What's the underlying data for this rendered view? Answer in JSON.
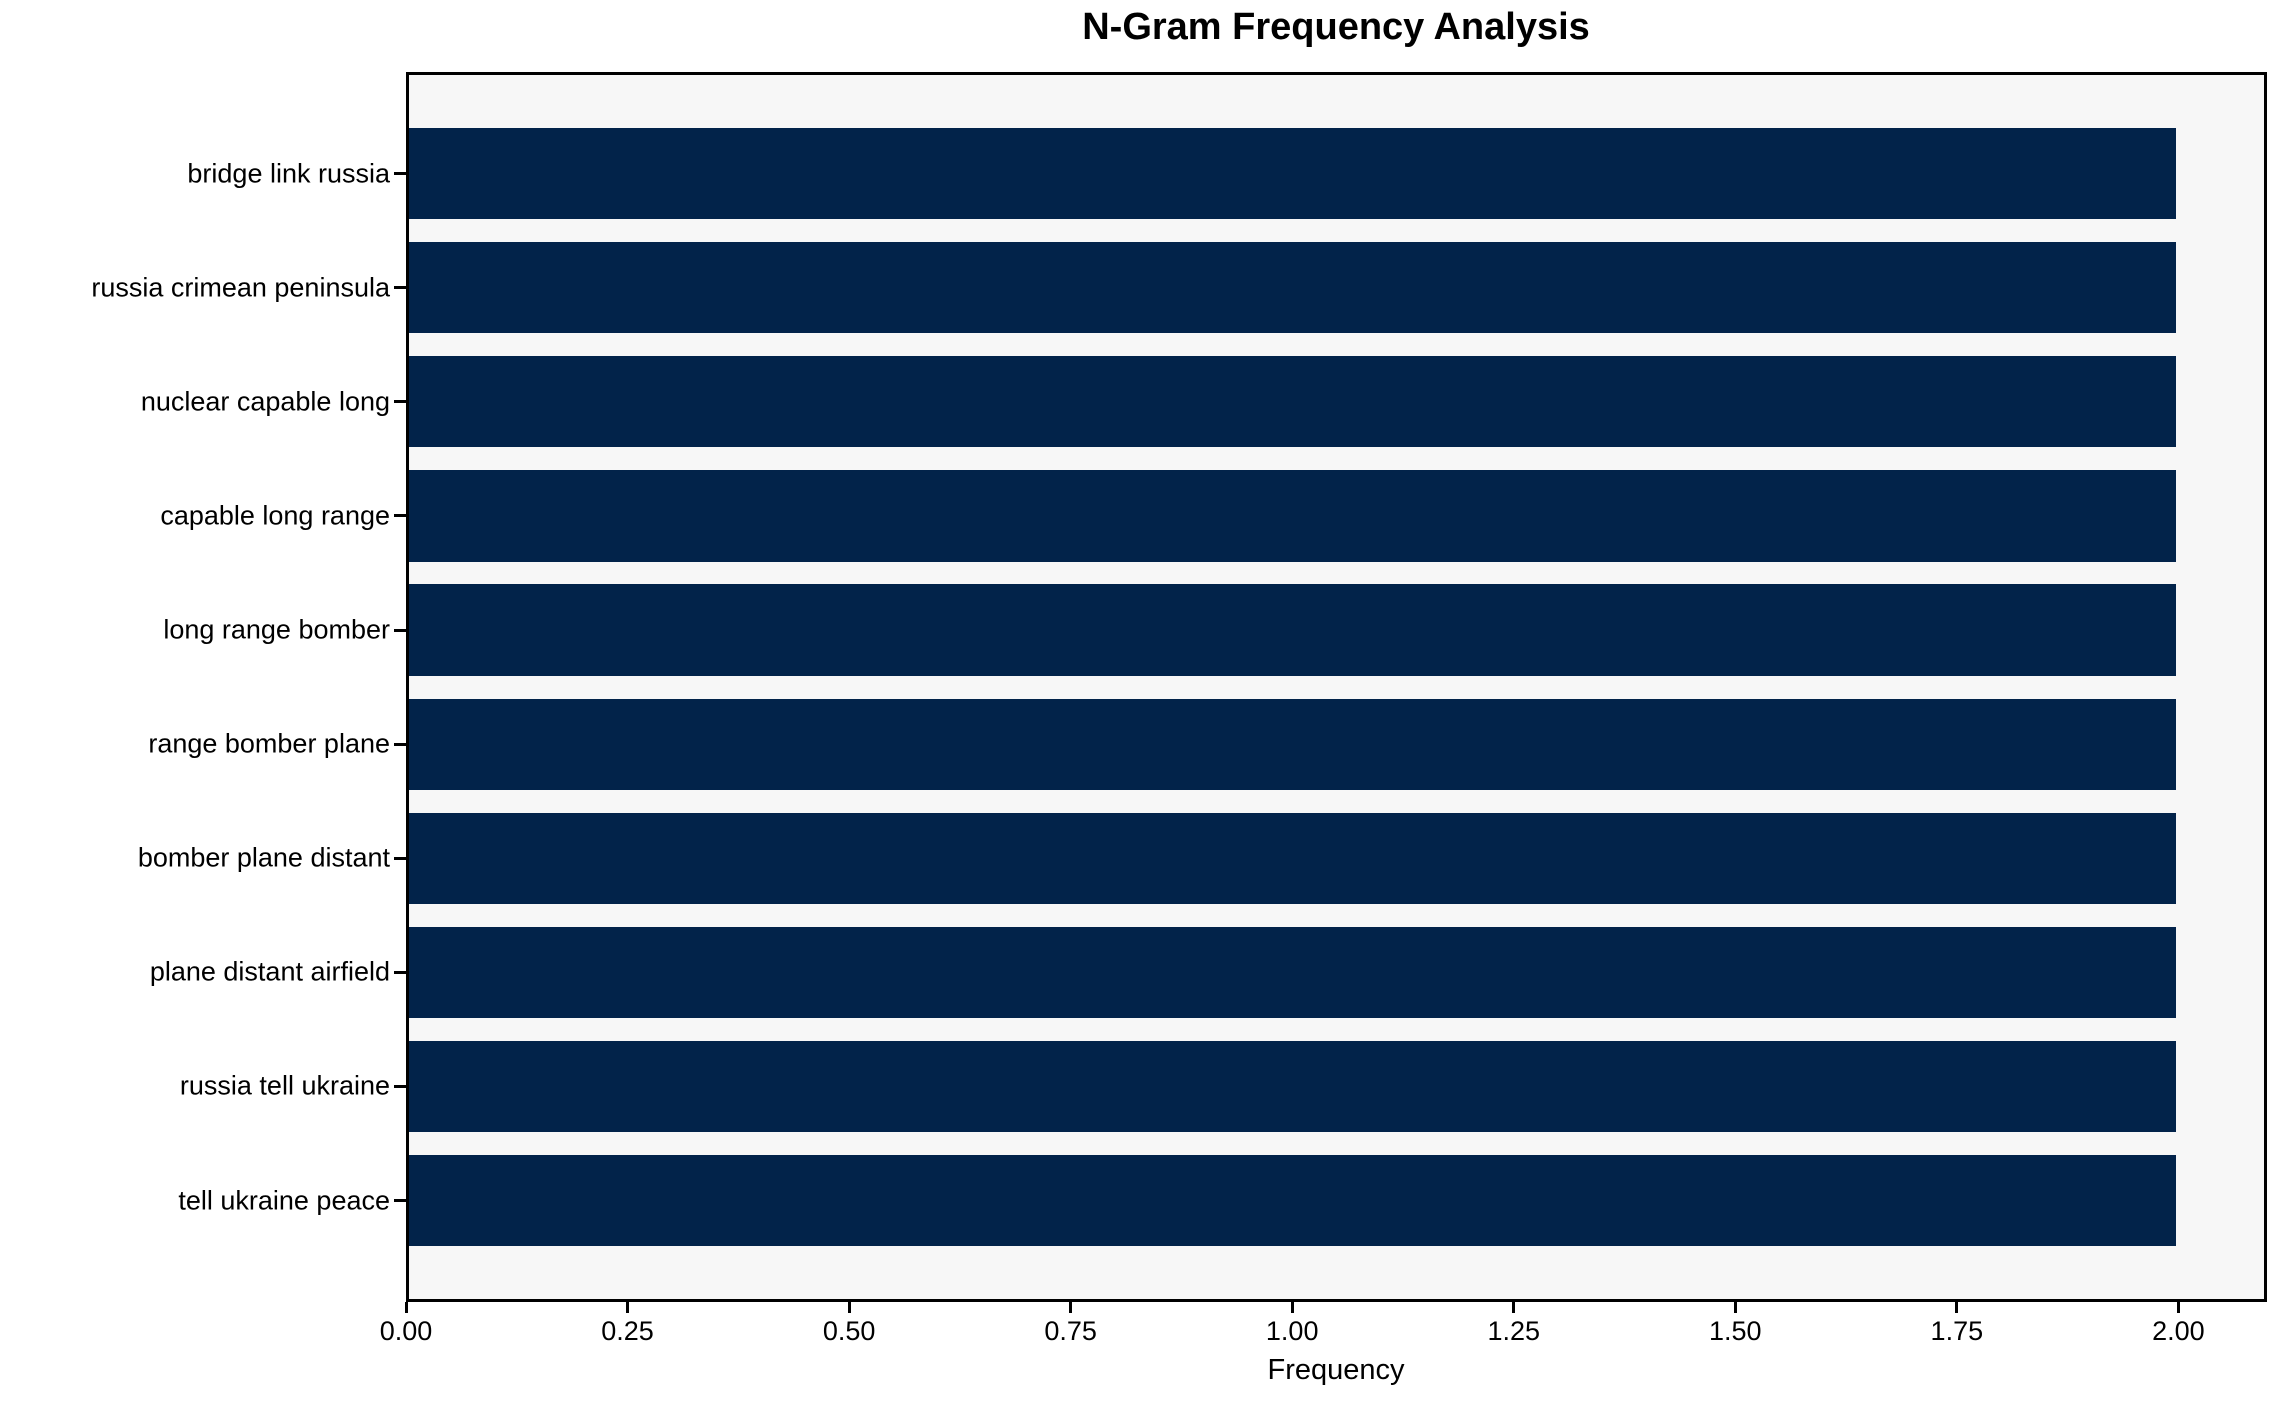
{
  "chart_data": {
    "type": "bar",
    "orientation": "horizontal",
    "title": "N-Gram Frequency Analysis",
    "xlabel": "Frequency",
    "ylabel": "",
    "categories": [
      "bridge link russia",
      "russia crimean peninsula",
      "nuclear capable long",
      "capable long range",
      "long range bomber",
      "range bomber plane",
      "bomber plane distant",
      "plane distant airfield",
      "russia tell ukraine",
      "tell ukraine peace"
    ],
    "values": [
      2,
      2,
      2,
      2,
      2,
      2,
      2,
      2,
      2,
      2
    ],
    "xlim": [
      0,
      2.1
    ],
    "x_ticks": [
      {
        "value": 0.0,
        "label": "0.00"
      },
      {
        "value": 0.25,
        "label": "0.25"
      },
      {
        "value": 0.5,
        "label": "0.50"
      },
      {
        "value": 0.75,
        "label": "0.75"
      },
      {
        "value": 1.0,
        "label": "1.00"
      },
      {
        "value": 1.25,
        "label": "1.25"
      },
      {
        "value": 1.5,
        "label": "1.50"
      },
      {
        "value": 1.75,
        "label": "1.75"
      },
      {
        "value": 2.0,
        "label": "2.00"
      }
    ],
    "grid": false,
    "legend": null,
    "colors": {
      "bar": "#02234a",
      "plot_background": "#f7f7f7",
      "figure_background": "#ffffff",
      "spine": "#000000",
      "text": "#000000"
    }
  }
}
